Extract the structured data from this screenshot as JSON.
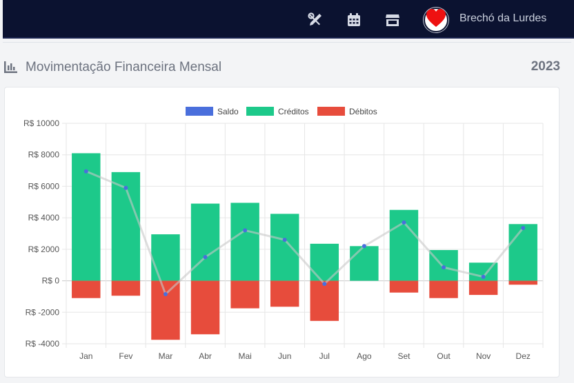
{
  "header": {
    "icons": [
      "tools-icon",
      "calendar-icon",
      "store-icon"
    ],
    "avatar_icon": "heart-icon",
    "username": "Brechó da Lurdes"
  },
  "page": {
    "title": "Movimentação Financeira Mensal",
    "year": "2023",
    "title_icon": "bar-chart-icon"
  },
  "colors": {
    "saldo": "#4a6fdc",
    "creditos": "#1dc98a",
    "debitos": "#e74c3c"
  },
  "chart_data": {
    "type": "bar",
    "categories": [
      "Jan",
      "Fev",
      "Mar",
      "Abr",
      "Mai",
      "Jun",
      "Jul",
      "Ago",
      "Set",
      "Out",
      "Nov",
      "Dez"
    ],
    "series": [
      {
        "name": "Saldo",
        "type": "line",
        "values": [
          6950,
          5900,
          -850,
          1500,
          3200,
          2600,
          -200,
          2200,
          3700,
          850,
          250,
          3350
        ]
      },
      {
        "name": "Créditos",
        "type": "bar",
        "values": [
          8100,
          6900,
          2950,
          4900,
          4950,
          4250,
          2350,
          2200,
          4500,
          1950,
          1150,
          3600
        ]
      },
      {
        "name": "Débitos",
        "type": "bar",
        "values": [
          -1100,
          -950,
          -3750,
          -3400,
          -1750,
          -1650,
          -2550,
          0,
          -750,
          -1100,
          -900,
          -250
        ]
      }
    ],
    "ylim": [
      -4000,
      10000
    ],
    "yticks": [
      10000,
      8000,
      6000,
      4000,
      2000,
      0,
      -2000,
      -4000
    ],
    "ytick_labels": [
      "R$ 10000",
      "R$ 8000",
      "R$ 6000",
      "R$ 4000",
      "R$ 2000",
      "R$ 0",
      "R$ -2000",
      "R$ -4000"
    ],
    "stacked": true,
    "grid": true,
    "legend": "top-center"
  }
}
